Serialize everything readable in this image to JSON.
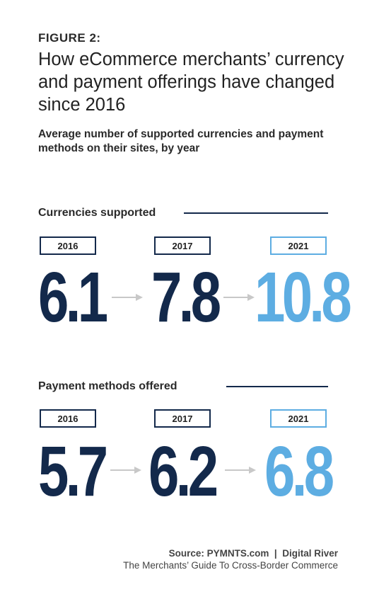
{
  "figure_label": "FIGURE 2:",
  "title": "How eCommerce merchants’ currency and payment offerings have changed since 2016",
  "subtitle": "Average number of supported currencies and payment methods on their sites, by year",
  "colors": {
    "navy": "#13294b",
    "highlight": "#5dade2",
    "arrow": "#c8c8c8"
  },
  "chart_data": [
    {
      "type": "table",
      "title": "Currencies supported",
      "categories": [
        "2016",
        "2017",
        "2021"
      ],
      "values": [
        "6.1",
        "7.8",
        "10.8"
      ],
      "highlight": "2021"
    },
    {
      "type": "table",
      "title": "Payment methods offered",
      "categories": [
        "2016",
        "2017",
        "2021"
      ],
      "values": [
        "5.7",
        "6.2",
        "6.8"
      ],
      "highlight": "2021"
    }
  ],
  "source": {
    "line1": "Source: PYMNTS.com  |  Digital River",
    "line2": "The Merchants’ Guide To Cross-Border Commerce"
  }
}
